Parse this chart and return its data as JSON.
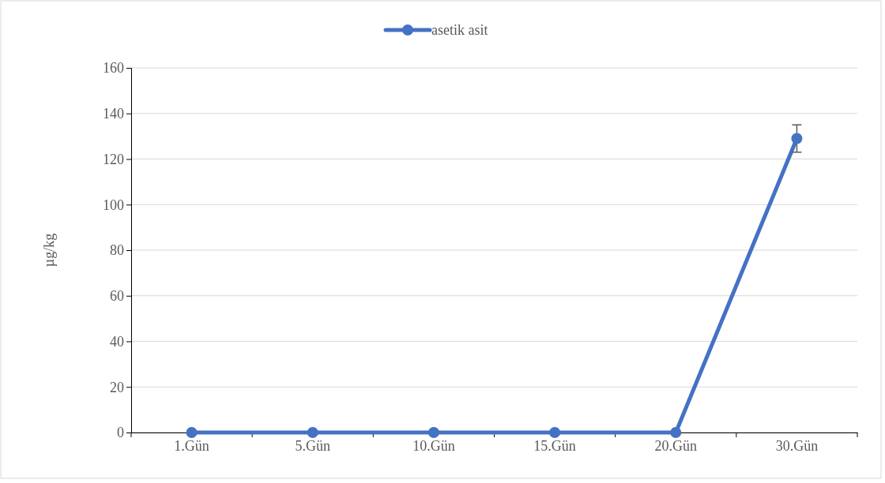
{
  "chart_data": {
    "type": "line",
    "ylabel": "µg/kg",
    "categories": [
      "1.Gün",
      "5.Gün",
      "10.Gün",
      "15.Gün",
      "20.Gün",
      "30.Gün"
    ],
    "series": [
      {
        "name": "asetik asit",
        "color": "#4472c4",
        "values": [
          0,
          0,
          0,
          0,
          0,
          129
        ],
        "errors": [
          null,
          null,
          null,
          null,
          null,
          6
        ]
      }
    ],
    "ylim": [
      0,
      160
    ],
    "yticks": [
      0,
      20,
      40,
      60,
      80,
      100,
      120,
      140,
      160
    ],
    "grid": "y",
    "legend": "top",
    "marker": "circle",
    "line_style": "solid"
  }
}
